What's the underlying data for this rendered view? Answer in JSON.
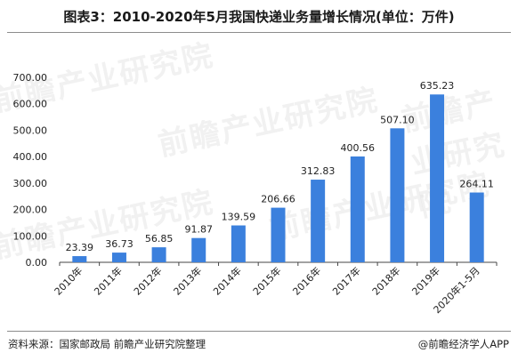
{
  "title": "图表3：2010-2020年5月我国快递业务量增长情况(单位：万件)",
  "source": "资料来源：国家邮政局 前瞻产业研究院整理",
  "brand": "@前瞻经济学人APP",
  "watermark": "前瞻产业研究院",
  "colors": {
    "bar": "#3b80dd",
    "axis": "#444444"
  },
  "chart_data": {
    "type": "bar",
    "title": "图表3：2010-2020年5月我国快递业务量增长情况(单位：万件)",
    "categories": [
      "2010年",
      "2011年",
      "2012年",
      "2013年",
      "2014年",
      "2015年",
      "2016年",
      "2017年",
      "2018年",
      "2019年",
      "2020年1-5月"
    ],
    "values": [
      23.39,
      36.73,
      56.85,
      91.87,
      139.59,
      206.66,
      312.83,
      400.56,
      507.1,
      635.23,
      264.11
    ],
    "value_labels": [
      "23.39",
      "36.73",
      "56.85",
      "91.87",
      "139.59",
      "206.66",
      "312.83",
      "400.56",
      "507.10",
      "635.23",
      "264.11"
    ],
    "yticks": [
      "0.00",
      "100.00",
      "200.00",
      "300.00",
      "400.00",
      "500.00",
      "600.00",
      "700.00"
    ],
    "ylim": [
      0,
      700
    ],
    "grid": false,
    "xlabel": "",
    "ylabel": ""
  }
}
